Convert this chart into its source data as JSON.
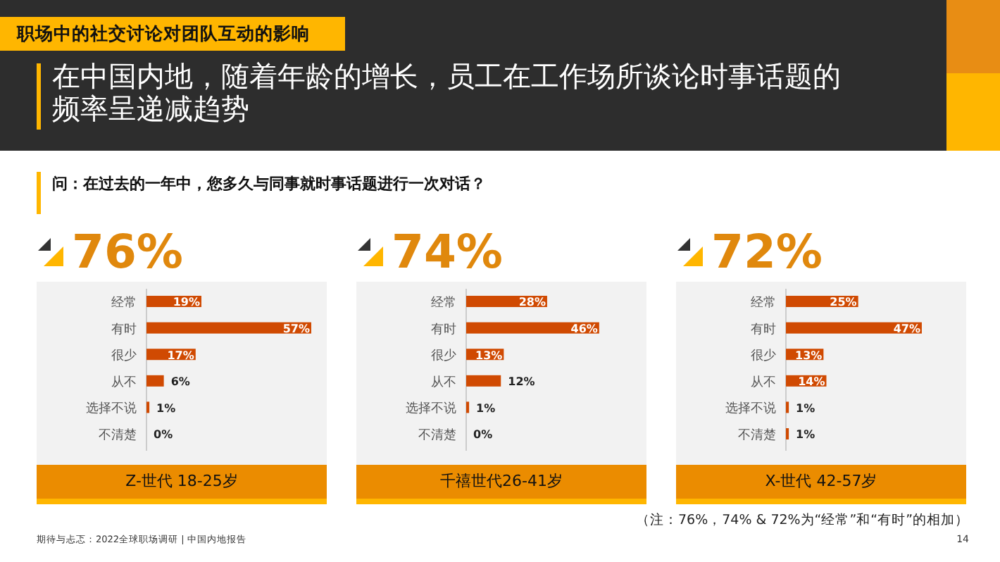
{
  "chart_data": [
    {
      "type": "other",
      "title": "在中国内地，随着年龄的增长，员工在工作场所谈论时事话题的频率呈递减趋势",
      "subtitle": "问：在过去的一年中，您多久与同事就时事话题进行一次对话？",
      "annotations": [
        "职场中的社交讨论对团队互动的影响",
        "（注：76%，74% & 72%为“经常”和“有时”的相加）",
        "期待与忐忑：2022全球职场调研 | 中国内地报告",
        "14"
      ]
    },
    {
      "type": "bar",
      "orientation": "horizontal",
      "title": "76%",
      "xlabel": "Z-世代 18-25岁",
      "categories": [
        "经常",
        "有时",
        "很少",
        "从不",
        "选择不说",
        "不清楚"
      ],
      "values": [
        19,
        57,
        17,
        6,
        1,
        0
      ],
      "value_labels": [
        "19%",
        "57%",
        "17%",
        "6%",
        "1%",
        "0%"
      ],
      "color": "#d04a02"
    },
    {
      "type": "bar",
      "orientation": "horizontal",
      "title": "74%",
      "xlabel": "千禧世代26-41岁",
      "categories": [
        "经常",
        "有时",
        "很少",
        "从不",
        "选择不说",
        "不清楚"
      ],
      "values": [
        28,
        46,
        13,
        12,
        1,
        0
      ],
      "value_labels": [
        "28%",
        "46%",
        "13%",
        "12%",
        "1%",
        "0%"
      ],
      "color": "#d04a02"
    },
    {
      "type": "bar",
      "orientation": "horizontal",
      "title": "72%",
      "xlabel": "X-世代 42-57岁",
      "categories": [
        "经常",
        "有时",
        "很少",
        "从不",
        "选择不说",
        "不清楚"
      ],
      "values": [
        25,
        47,
        13,
        14,
        1,
        1
      ],
      "value_labels": [
        "25%",
        "47%",
        "13%",
        "14%",
        "1%",
        "1%"
      ],
      "color": "#d04a02"
    }
  ]
}
